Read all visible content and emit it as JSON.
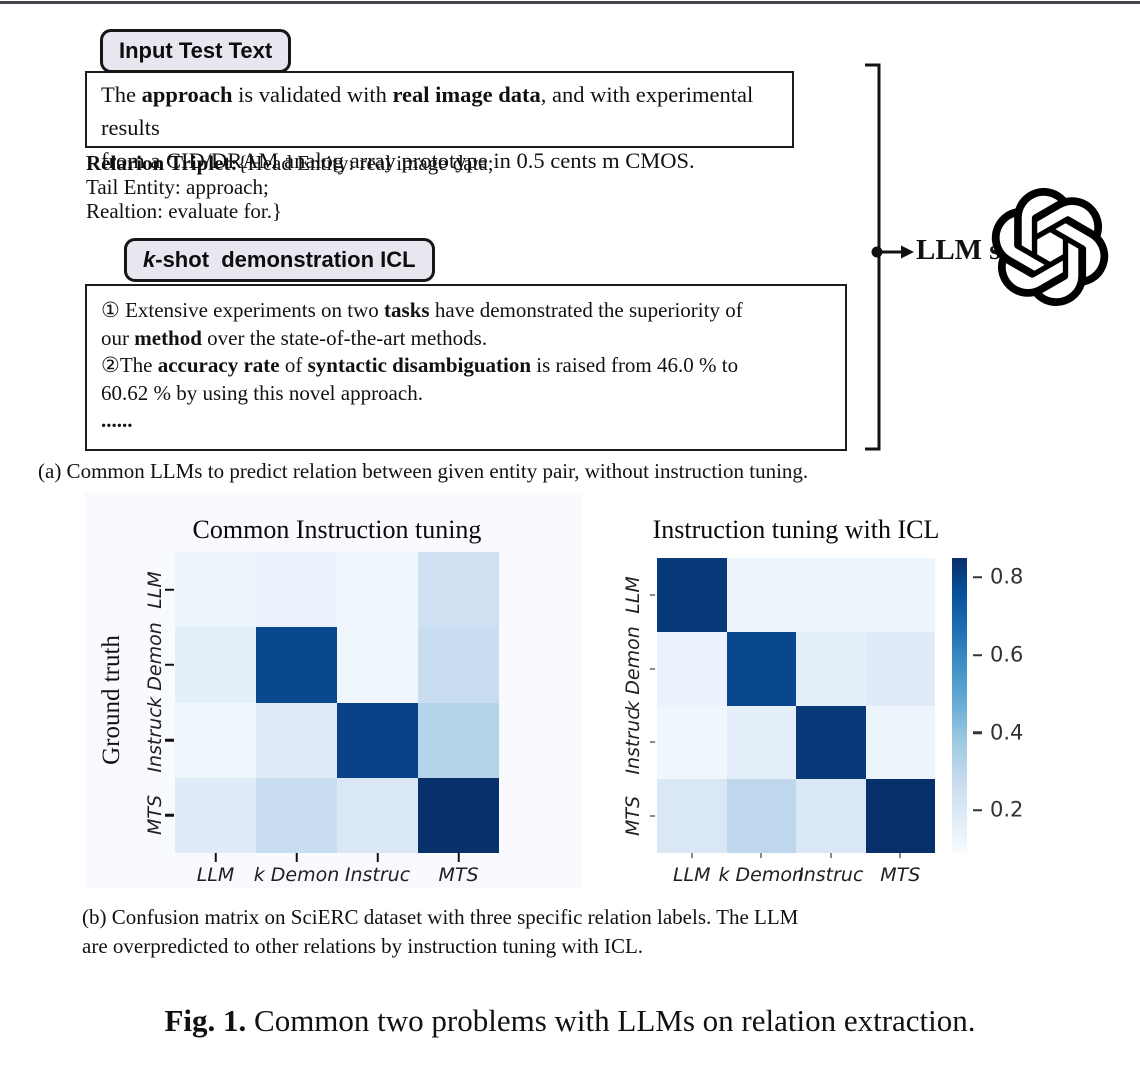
{
  "panel_a": {
    "input_label": "Input Test Text",
    "kshot_label_segments": [
      {
        "t": "k",
        "b": true,
        "i": true
      },
      {
        "t": "-shot  demonstration ICL",
        "b": true
      }
    ],
    "box1_lines": [
      [
        {
          "t": "The "
        },
        {
          "t": "approach",
          "b": true
        },
        {
          "t": " is validated with "
        },
        {
          "t": "real image data",
          "b": true
        },
        {
          "t": ", and with experimental results"
        }
      ],
      [
        {
          "t": "from a CID/DRAM analog array prototype in 0.5 cents m CMOS."
        }
      ]
    ],
    "triplet_lines": [
      [
        {
          "t": "Relarion Triplet:",
          "b": true
        },
        {
          "t": "{Head Entity: real image data;"
        }
      ],
      [
        {
          "t": "Tail Entity: approach;"
        }
      ],
      [
        {
          "t": "Realtion: evaluate for.}"
        }
      ]
    ],
    "box2_lines": [
      [
        {
          "t": "① Extensive experiments on two "
        },
        {
          "t": "tasks",
          "b": true
        },
        {
          "t": " have demonstrated the superiority of"
        }
      ],
      [
        {
          "t": "our "
        },
        {
          "t": "method",
          "b": true
        },
        {
          "t": " over the state-of-the-art methods."
        }
      ],
      [
        {
          "t": "②The "
        },
        {
          "t": "accuracy rate",
          "b": true
        },
        {
          "t": " of "
        },
        {
          "t": "syntactic disambiguation",
          "b": true
        },
        {
          "t": " is raised from 46.0 % to"
        }
      ],
      [
        {
          "t": "60.62 % by using this novel approach."
        }
      ],
      [
        {
          "t": "......",
          "b": true
        }
      ]
    ],
    "llm_text": "LLM s",
    "caption": "(a) Common LLMs to predict relation between given entity pair, without instruction tuning."
  },
  "panel_b": {
    "caption_line1": "(b) Confusion matrix on SciERC dataset with three specific relation labels. The LLM",
    "caption_line2": "are overpredicted to other relations by instruction tuning with ICL."
  },
  "figure_caption": {
    "prefix": "Fig. 1.",
    "rest": " Common two problems with LLMs on relation extraction."
  },
  "chart_data": [
    {
      "type": "heatmap",
      "title": "Common Instruction tuning",
      "ylabel": "Ground truth",
      "xlabel": "",
      "x_tick_labels": [
        "LLM",
        "k Demon",
        "Instruc",
        "MTS"
      ],
      "y_tick_labels": [
        "LLM",
        "k Demon",
        "Instruc",
        "MTS"
      ],
      "colormap": "Blues",
      "vmin": 0.09,
      "vmax": 0.85,
      "values": [
        [
          0.13,
          0.14,
          0.12,
          0.25
        ],
        [
          0.16,
          0.78,
          0.12,
          0.27
        ],
        [
          0.12,
          0.18,
          0.8,
          0.32
        ],
        [
          0.18,
          0.27,
          0.2,
          0.85
        ]
      ]
    },
    {
      "type": "heatmap",
      "title": "Instruction tuning with ICL",
      "ylabel": "",
      "xlabel": "",
      "x_tick_labels": [
        "LLM",
        "k Demon",
        "Instruc",
        "MTS"
      ],
      "y_tick_labels": [
        "LLM",
        "k Demon",
        "Instruc",
        "MTS"
      ],
      "colormap": "Blues",
      "vmin": 0.09,
      "vmax": 0.85,
      "values": [
        [
          0.82,
          0.13,
          0.13,
          0.13
        ],
        [
          0.14,
          0.78,
          0.17,
          0.18
        ],
        [
          0.12,
          0.16,
          0.82,
          0.13
        ],
        [
          0.2,
          0.3,
          0.2,
          0.85
        ]
      ],
      "colorbar": {
        "ticks": [
          0.8,
          0.6,
          0.4,
          0.2
        ]
      }
    }
  ]
}
